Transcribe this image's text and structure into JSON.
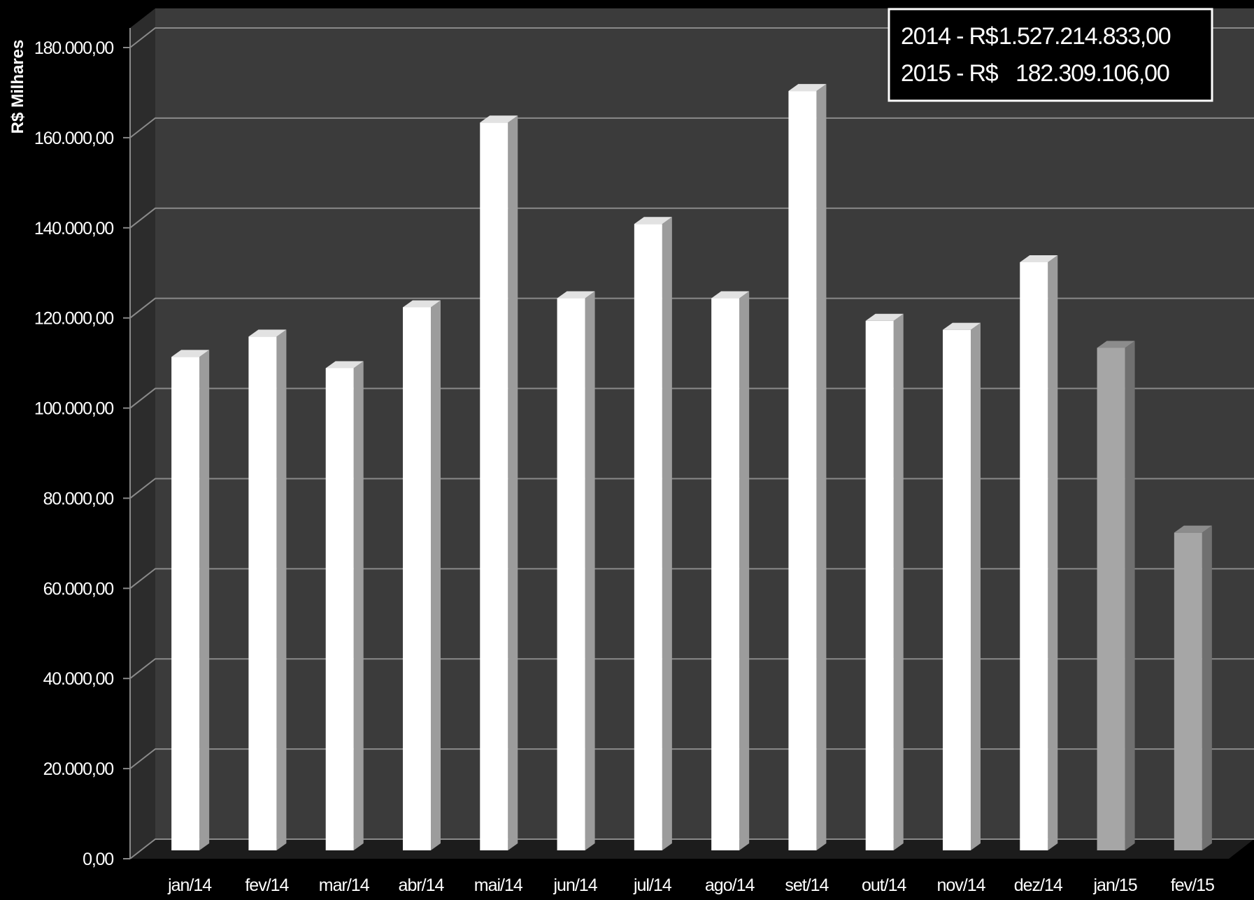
{
  "chart_data": {
    "type": "bar",
    "title": "",
    "xlabel": "",
    "ylabel": "R$ Milhares",
    "ylim": [
      0,
      180000
    ],
    "y_tick_values": [
      0,
      20000,
      40000,
      60000,
      80000,
      100000,
      120000,
      140000,
      160000,
      180000
    ],
    "y_tick_labels": [
      "0,00",
      "20.000,00",
      "40.000,00",
      "60.000,00",
      "80.000,00",
      "100.000,00",
      "120.000,00",
      "140.000,00",
      "160.000,00",
      "180.000,00"
    ],
    "categories": [
      "jan/14",
      "fev/14",
      "mar/14",
      "abr/14",
      "mai/14",
      "jun/14",
      "jul/14",
      "ago/14",
      "set/14",
      "out/14",
      "nov/14",
      "dez/14",
      "jan/15",
      "fev/15"
    ],
    "values": [
      109500,
      114000,
      107000,
      120500,
      161500,
      122500,
      139000,
      122500,
      168500,
      117500,
      115500,
      130500,
      111500,
      70500
    ],
    "bar_groups": [
      "2014",
      "2014",
      "2014",
      "2014",
      "2014",
      "2014",
      "2014",
      "2014",
      "2014",
      "2014",
      "2014",
      "2014",
      "2015",
      "2015"
    ],
    "grid": true,
    "style": "3d-column",
    "legend_position": "top-right",
    "annotation": {
      "lines": [
        {
          "label": "2014 - R$",
          "amount": "1.527.214.833,00"
        },
        {
          "label": "2015 - R$",
          "amount": "182.309.106,00"
        }
      ]
    }
  },
  "colors": {
    "background": "#000000",
    "plot_back_wall": "#3b3b3b",
    "plot_side_wall": "#2c2c2c",
    "floor": "#1c1c1c",
    "gridline": "#8a8a8a",
    "bar_2014_front": "#ffffff",
    "bar_2014_side": "#9c9c9c",
    "bar_2014_top": "#e2e2e2",
    "bar_2015_front": "#a6a6a6",
    "bar_2015_side": "#707070",
    "bar_2015_top": "#8c8c8c",
    "text": "#ffffff"
  }
}
